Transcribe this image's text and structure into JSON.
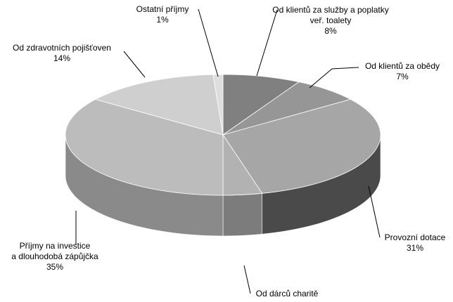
{
  "chart_data": {
    "type": "pie",
    "style": "3d",
    "title": "",
    "slices": [
      {
        "label_lines": [
          "Od klientů za služby a poplatky",
          "veř. toalety"
        ],
        "value": 8,
        "value_text": "8%",
        "color": "#808080",
        "side_color": "#5e5e5e"
      },
      {
        "label_lines": [
          "Od klientů za obědy"
        ],
        "value": 7,
        "value_text": "7%",
        "color": "#969696",
        "side_color": "#6f6f6f"
      },
      {
        "label_lines": [
          "Provozní dotace"
        ],
        "value": 31,
        "value_text": "31%",
        "color": "#a6a6a6",
        "side_color": "#4a4a4a"
      },
      {
        "label_lines": [
          "Od dárců charitě"
        ],
        "value": 4,
        "value_text": "",
        "color": "#b2b2b2",
        "side_color": "#7c7c7c"
      },
      {
        "label_lines": [
          "Příjmy na investice",
          "a dlouhodobá zápůjčka"
        ],
        "value": 35,
        "value_text": "35%",
        "color": "#bcbcbc",
        "side_color": "#8a8a8a"
      },
      {
        "label_lines": [
          "Od zdravotních pojišťoven"
        ],
        "value": 14,
        "value_text": "14%",
        "color": "#cfcfcf",
        "side_color": "#9f9f9f"
      },
      {
        "label_lines": [
          "Ostatní příjmy"
        ],
        "value": 1,
        "value_text": "1%",
        "color": "#dedede",
        "side_color": "#b5b5b5"
      }
    ]
  }
}
